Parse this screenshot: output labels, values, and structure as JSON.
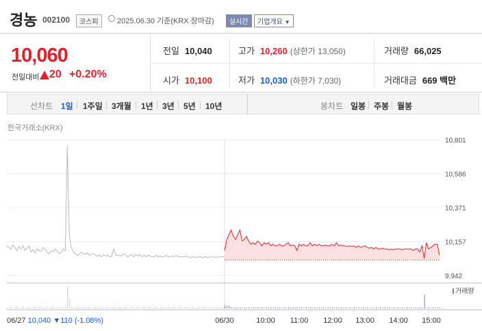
{
  "header": {
    "name": "경농",
    "code": "002100",
    "market": "코스피",
    "date_text": "2025.06.30  기준(KRX 장마감)",
    "realtime": "실시간",
    "company_info": "기업개요"
  },
  "price": {
    "current": "10,060",
    "change_label": "전일대비",
    "change_value": "20",
    "change_rate": "+0.20%"
  },
  "stats": {
    "prev_label": "전일",
    "prev_value": "10,040",
    "high_label": "고가",
    "high_value": "10,260",
    "upper_limit": "(상한가 13,050)",
    "volume_label": "거래량",
    "volume_value": "66,025",
    "open_label": "시가",
    "open_value": "10,100",
    "low_label": "저가",
    "low_value": "10,030",
    "lower_limit": "(하한가 7,030)",
    "amount_label": "거래대금",
    "amount_value": "669 백만"
  },
  "tabs": {
    "line_label": "선차트",
    "line_items": [
      "1일",
      "1주일",
      "3개월",
      "1년",
      "3년",
      "5년",
      "10년"
    ],
    "active_index": 0,
    "candle_label": "봉차트",
    "candle_items": [
      "일봉",
      "주봉",
      "월봉"
    ]
  },
  "chart_source": "한국거래소(KRX)",
  "chart_data": {
    "type": "line",
    "title": "",
    "y_ticks": [
      "10,801",
      "10,586",
      "10,371",
      "10,157",
      "9,942"
    ],
    "ylim": [
      9942,
      10801
    ],
    "x_ticks": [
      "06/30",
      "10:00",
      "11:00",
      "12:00",
      "13:00",
      "14:00",
      "15:00"
    ],
    "prev_close": 10040,
    "prev_day": {
      "name": "06/27",
      "values": [
        10130,
        10120,
        10110,
        10135,
        10120,
        10100,
        10125,
        10110,
        10130,
        10100,
        10115,
        10130,
        10090,
        10105,
        10085,
        10110,
        10100,
        10095,
        10120,
        10105,
        10090,
        10080,
        10100,
        10090,
        10110,
        10095,
        10080,
        10090,
        10110,
        10100,
        10760,
        10200,
        10120,
        10090,
        10080,
        10070,
        10075,
        10090,
        10080,
        10075,
        10085,
        10070,
        10075,
        10080,
        10070,
        10065,
        10070,
        10060,
        10075,
        10065,
        10070,
        10060,
        10065,
        10110,
        10070,
        10070,
        10065,
        10070,
        10080,
        10070,
        10060,
        10070,
        10075,
        10060,
        10075,
        10065,
        10075,
        10060,
        10070,
        10060,
        10070,
        10065,
        10060,
        10060,
        10070,
        10060,
        10065,
        10060,
        10060,
        10070,
        10060,
        10060,
        10065,
        10060,
        10070,
        10060,
        10060,
        10060,
        10060,
        10065,
        10060,
        10055,
        10060,
        10060,
        10055,
        10060,
        10060,
        10055,
        10060,
        10060,
        10055,
        10060,
        10060,
        10060,
        10055,
        10060,
        10060,
        10060,
        10060
      ]
    },
    "today": {
      "name": "06/30",
      "values": [
        10100,
        10170,
        10200,
        10230,
        10190,
        10170,
        10200,
        10230,
        10160,
        10170,
        10190,
        10160,
        10140,
        10150,
        10140,
        10160,
        10150,
        10130,
        10150,
        10140,
        10150,
        10130,
        10140,
        10130,
        10130,
        10140,
        10130,
        10130,
        10140,
        10150,
        10130,
        10135,
        10130,
        10100,
        10140,
        10130,
        10140,
        10130,
        10130,
        10150,
        10130,
        10140,
        10130,
        10140,
        10130,
        10130,
        10135,
        10130,
        10130,
        10140,
        10130,
        10150,
        10130,
        10135,
        10130,
        10130,
        10125,
        10130,
        10125,
        10130,
        10120,
        10130,
        10120,
        10125,
        10130,
        10120,
        10115,
        10120,
        10110,
        10120,
        10110,
        10110,
        10115,
        10110,
        10110,
        10105,
        10110,
        10105,
        10110,
        10110,
        10110,
        10105,
        10110,
        10110,
        10110,
        10110,
        10100,
        10110,
        10110,
        10090,
        10130,
        10050,
        10150,
        10110,
        10120,
        10130,
        10140,
        10140,
        10070
      ]
    },
    "volume_legend": "거래량",
    "prev_summary": {
      "date": "06/27",
      "close": "10,040",
      "change": "▼110",
      "rate": "(-1.08%)"
    }
  }
}
